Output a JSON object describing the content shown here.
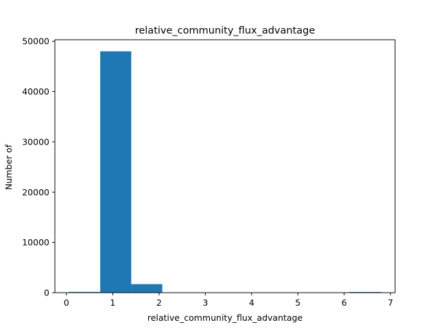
{
  "chart_data": {
    "type": "bar",
    "title": "relative_community_flux_advantage",
    "xlabel": "relative_community_flux_advantage",
    "ylabel": "Number of",
    "xlim": [
      -0.25,
      7.1
    ],
    "ylim": [
      0,
      50300
    ],
    "xticks": [
      0,
      1,
      2,
      3,
      4,
      5,
      6,
      7
    ],
    "yticks": [
      0,
      10000,
      20000,
      30000,
      40000,
      50000
    ],
    "bins": [
      {
        "start": 0.05,
        "end": 0.73,
        "value": 150
      },
      {
        "start": 0.73,
        "end": 1.4,
        "value": 48000
      },
      {
        "start": 1.4,
        "end": 2.07,
        "value": 1700
      },
      {
        "start": 2.07,
        "end": 2.75,
        "value": 0
      },
      {
        "start": 2.75,
        "end": 3.42,
        "value": 0
      },
      {
        "start": 3.42,
        "end": 4.1,
        "value": 0
      },
      {
        "start": 4.1,
        "end": 4.77,
        "value": 0
      },
      {
        "start": 4.77,
        "end": 5.45,
        "value": 0
      },
      {
        "start": 5.45,
        "end": 6.12,
        "value": 0
      },
      {
        "start": 6.12,
        "end": 6.8,
        "value": 5
      }
    ],
    "bar_color": "#1f77b4",
    "grid": false,
    "legend": "none"
  }
}
